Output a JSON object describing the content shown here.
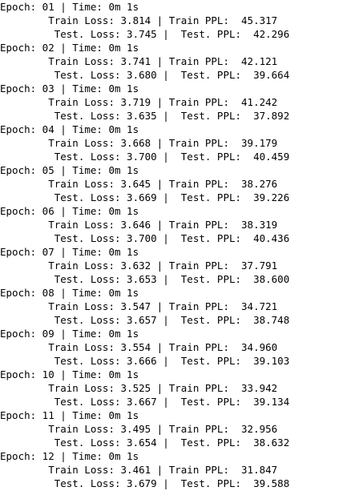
{
  "epochs": [
    {
      "header": "Epoch: 01 | Time: 0m 1s",
      "train": "        Train Loss: 3.814 | Train PPL:  45.317",
      "test": "         Test. Loss: 3.745 |  Test. PPL:  42.296"
    },
    {
      "header": "Epoch: 02 | Time: 0m 1s",
      "train": "        Train Loss: 3.741 | Train PPL:  42.121",
      "test": "         Test. Loss: 3.680 |  Test. PPL:  39.664"
    },
    {
      "header": "Epoch: 03 | Time: 0m 1s",
      "train": "        Train Loss: 3.719 | Train PPL:  41.242",
      "test": "         Test. Loss: 3.635 |  Test. PPL:  37.892"
    },
    {
      "header": "Epoch: 04 | Time: 0m 1s",
      "train": "        Train Loss: 3.668 | Train PPL:  39.179",
      "test": "         Test. Loss: 3.700 |  Test. PPL:  40.459"
    },
    {
      "header": "Epoch: 05 | Time: 0m 1s",
      "train": "        Train Loss: 3.645 | Train PPL:  38.276",
      "test": "         Test. Loss: 3.669 |  Test. PPL:  39.226"
    },
    {
      "header": "Epoch: 06 | Time: 0m 1s",
      "train": "        Train Loss: 3.646 | Train PPL:  38.319",
      "test": "         Test. Loss: 3.700 |  Test. PPL:  40.436"
    },
    {
      "header": "Epoch: 07 | Time: 0m 1s",
      "train": "        Train Loss: 3.632 | Train PPL:  37.791",
      "test": "         Test. Loss: 3.653 |  Test. PPL:  38.600"
    },
    {
      "header": "Epoch: 08 | Time: 0m 1s",
      "train": "        Train Loss: 3.547 | Train PPL:  34.721",
      "test": "         Test. Loss: 3.657 |  Test. PPL:  38.748"
    },
    {
      "header": "Epoch: 09 | Time: 0m 1s",
      "train": "        Train Loss: 3.554 | Train PPL:  34.960",
      "test": "         Test. Loss: 3.666 |  Test. PPL:  39.103"
    },
    {
      "header": "Epoch: 10 | Time: 0m 1s",
      "train": "        Train Loss: 3.525 | Train PPL:  33.942",
      "test": "         Test. Loss: 3.667 |  Test. PPL:  39.134"
    },
    {
      "header": "Epoch: 11 | Time: 0m 1s",
      "train": "        Train Loss: 3.495 | Train PPL:  32.956",
      "test": "         Test. Loss: 3.654 |  Test. PPL:  38.632"
    },
    {
      "header": "Epoch: 12 | Time: 0m 1s",
      "train": "        Train Loss: 3.461 | Train PPL:  31.847",
      "test": "         Test. Loss: 3.679 |  Test. PPL:  39.588"
    }
  ]
}
